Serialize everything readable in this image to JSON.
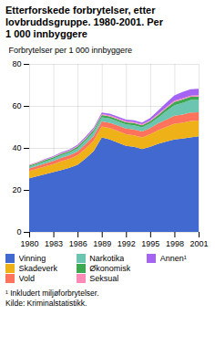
{
  "chart_data": {
    "type": "area",
    "stacked": true,
    "title": "Etterforskede forbrytelser, etter\nlovbruddsgruppe. 1980-2001. Per\n1 000 innbyggere",
    "ylabel": "Forbrytelser per 1 000 innbyggere",
    "x": [
      1980,
      1981,
      1982,
      1983,
      1984,
      1985,
      1986,
      1987,
      1988,
      1989,
      1990,
      1991,
      1992,
      1993,
      1994,
      1995,
      1996,
      1997,
      1998,
      1999,
      2000,
      2001
    ],
    "series": [
      {
        "name": "Vinning",
        "values": [
          25.5,
          26.5,
          27.5,
          28.5,
          29.5,
          30.5,
          32.0,
          35.0,
          38.5,
          45.0,
          44.0,
          42.5,
          41.0,
          40.5,
          39.5,
          40.5,
          42.0,
          43.0,
          44.0,
          44.5,
          45.0,
          45.5
        ]
      },
      {
        "name": "Skadeverk",
        "values": [
          3.5,
          3.6,
          3.7,
          3.8,
          4.2,
          4.3,
          4.5,
          4.8,
          5.0,
          5.2,
          5.5,
          5.5,
          5.5,
          5.5,
          5.5,
          6.0,
          6.5,
          7.0,
          7.5,
          7.5,
          7.8,
          7.5
        ]
      },
      {
        "name": "Vold",
        "values": [
          1.2,
          1.3,
          1.4,
          1.5,
          1.6,
          1.7,
          1.8,
          2.0,
          2.2,
          2.4,
          2.5,
          2.6,
          2.7,
          2.8,
          2.8,
          3.0,
          3.2,
          3.5,
          3.8,
          3.9,
          4.0,
          4.0
        ]
      },
      {
        "name": "Narkotika",
        "values": [
          0.8,
          0.9,
          1.0,
          1.1,
          1.2,
          1.3,
          1.5,
          1.7,
          1.9,
          2.0,
          2.0,
          2.0,
          2.0,
          2.0,
          2.0,
          2.2,
          2.8,
          4.0,
          5.0,
          5.5,
          6.0,
          6.0
        ]
      },
      {
        "name": "Økonomisk",
        "values": [
          0.5,
          0.5,
          0.6,
          0.6,
          0.7,
          0.7,
          0.8,
          0.9,
          1.0,
          1.0,
          1.0,
          1.0,
          1.0,
          1.0,
          1.0,
          1.0,
          1.2,
          1.4,
          1.6,
          1.6,
          1.5,
          1.5
        ]
      },
      {
        "name": "Seksual",
        "values": [
          0.3,
          0.3,
          0.3,
          0.3,
          0.3,
          0.3,
          0.4,
          0.4,
          0.4,
          0.5,
          0.5,
          0.5,
          0.5,
          0.5,
          0.5,
          0.5,
          0.6,
          0.6,
          0.6,
          0.6,
          0.6,
          0.6
        ]
      },
      {
        "name": "Annen¹",
        "values": [
          0.2,
          0.2,
          0.3,
          0.3,
          0.4,
          0.4,
          0.5,
          0.6,
          0.7,
          0.8,
          0.8,
          0.8,
          0.8,
          0.8,
          0.8,
          1.0,
          1.5,
          2.0,
          2.5,
          3.0,
          3.0,
          3.0
        ]
      }
    ],
    "xlim": [
      1980,
      2001
    ],
    "xticks": [
      1980,
      1983,
      1986,
      1989,
      1992,
      1995,
      1998,
      2001
    ],
    "ylim": [
      0,
      80
    ],
    "yticks": [
      0,
      20,
      40,
      60,
      80
    ],
    "grid": true,
    "legend": "bottom",
    "annotations": [
      "¹ Inkludert miljøforbrytelser.",
      "Kilde: Kriminalstatistikk."
    ]
  }
}
